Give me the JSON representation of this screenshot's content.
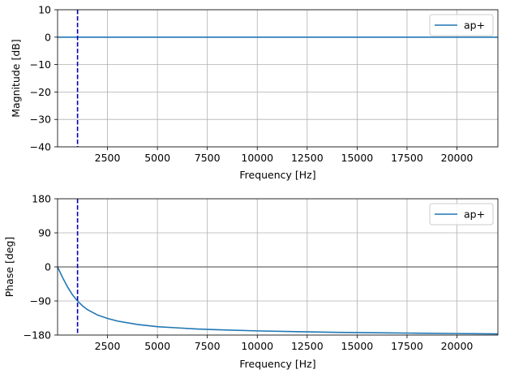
{
  "chart_data": [
    {
      "type": "line",
      "xlabel": "Frequency [Hz]",
      "ylabel": "Magnitude [dB]",
      "xlim": [
        0,
        22050
      ],
      "ylim": [
        -40,
        10
      ],
      "xticks": [
        2500,
        5000,
        7500,
        10000,
        12500,
        15000,
        17500,
        20000
      ],
      "yticks": [
        -40,
        -30,
        -20,
        -10,
        0,
        10
      ],
      "grid": true,
      "legend_position": "top-right",
      "vline": {
        "x": 1000,
        "color": "#0000b3",
        "style": "dashed"
      },
      "series": [
        {
          "name": "ap+",
          "color": "#1f77b4",
          "x": [
            0,
            22050
          ],
          "y": [
            0,
            0
          ]
        }
      ]
    },
    {
      "type": "line",
      "xlabel": "Frequency [Hz]",
      "ylabel": "Phase [deg]",
      "xlim": [
        0,
        22050
      ],
      "ylim": [
        -180,
        180
      ],
      "xticks": [
        2500,
        5000,
        7500,
        10000,
        12500,
        15000,
        17500,
        20000
      ],
      "yticks": [
        -180,
        -90,
        0,
        90,
        180
      ],
      "grid": true,
      "legend_position": "top-right",
      "vline": {
        "x": 1000,
        "color": "#0000b3",
        "style": "dashed"
      },
      "hline": {
        "y": 0,
        "color": "#808080"
      },
      "series": [
        {
          "name": "ap+",
          "color": "#1f77b4",
          "x": [
            0,
            250,
            500,
            750,
            1000,
            1250,
            1500,
            2000,
            2500,
            3000,
            4000,
            5000,
            6000,
            7000,
            8000,
            10000,
            12000,
            14000,
            16000,
            18000,
            20000,
            22050
          ],
          "y": [
            0,
            -28,
            -53,
            -74,
            -90,
            -103,
            -113,
            -127,
            -136,
            -143,
            -152,
            -158,
            -161,
            -164,
            -166,
            -169,
            -171,
            -173,
            -174,
            -175,
            -176,
            -177
          ]
        }
      ]
    }
  ]
}
